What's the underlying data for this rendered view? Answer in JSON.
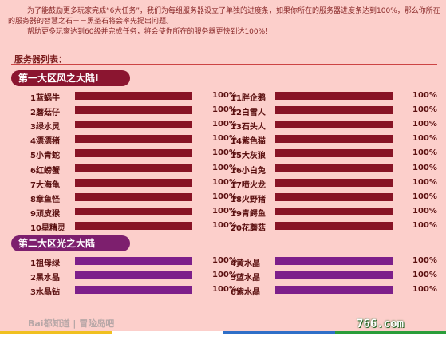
{
  "intro": {
    "p1": "为了能鼓励更多玩家完成“6大任务”，我们为每组服务器设立了单独的进度条，如果你所在的服务器进度条达到100%，那么你所在的服务器的智慧之石－－黑圣石将会率先提出问题。",
    "p2": "帮助更多玩家达到60级并完成任务，将会使你所在的服务器更快到达100%！"
  },
  "list_title": "服务器列表：",
  "region1": {
    "title": "第一大区风之大陆I",
    "left": [
      {
        "name": "1蓝蜗牛",
        "pct": "100%",
        "progress": 1.0
      },
      {
        "name": "2蘑菇仔",
        "pct": "100%",
        "progress": 1.0
      },
      {
        "name": "3绿水灵",
        "pct": "100%",
        "progress": 1.0
      },
      {
        "name": "4漂漂猪",
        "pct": "100%",
        "progress": 1.0
      },
      {
        "name": "5小青蛇",
        "pct": "100%",
        "progress": 1.0
      },
      {
        "name": "6红螃蟹",
        "pct": "100%",
        "progress": 1.0
      },
      {
        "name": "7大海龟",
        "pct": "100%",
        "progress": 1.0
      },
      {
        "name": "8章鱼怪",
        "pct": "100%",
        "progress": 1.0
      },
      {
        "name": "9顽皮猴",
        "pct": "100%",
        "progress": 1.0
      },
      {
        "name": "10星精灵",
        "pct": "100%",
        "progress": 1.0
      }
    ],
    "right": [
      {
        "name": "11胖企鹅",
        "pct": "100%",
        "progress": 1.0
      },
      {
        "name": "12白雪人",
        "pct": "100%",
        "progress": 1.0
      },
      {
        "name": "13石头人",
        "pct": "100%",
        "progress": 1.0
      },
      {
        "name": "14紫色猫",
        "pct": "100%",
        "progress": 1.0
      },
      {
        "name": "15大灰狼",
        "pct": "100%",
        "progress": 1.0
      },
      {
        "name": "16小白兔",
        "pct": "100%",
        "progress": 1.0
      },
      {
        "name": "17喷火龙",
        "pct": "100%",
        "progress": 1.0
      },
      {
        "name": "18火野猪",
        "pct": "100%",
        "progress": 1.0
      },
      {
        "name": "19青鳄鱼",
        "pct": "100%",
        "progress": 1.0
      },
      {
        "name": "20花蘑菇",
        "pct": "100%",
        "progress": 1.0
      }
    ]
  },
  "region2": {
    "title": "第二大区光之大陆",
    "left": [
      {
        "name": "1祖母绿",
        "pct": "100%",
        "progress": 1.0
      },
      {
        "name": "2黑水晶",
        "pct": "100%",
        "progress": 1.0
      },
      {
        "name": "3水晶钻",
        "pct": "100%",
        "progress": 1.0
      }
    ],
    "right": [
      {
        "name": "4黄水晶",
        "pct": "100%",
        "progress": 1.0
      },
      {
        "name": "5蓝水晶",
        "pct": "100%",
        "progress": 1.0
      },
      {
        "name": "6紫水晶",
        "pct": "100%",
        "progress": 1.0
      }
    ]
  },
  "watermark_left": "Bai都知道 | 冒险岛吧",
  "watermark_right": "766.com",
  "colors": {
    "background": "#fccfcb",
    "region1_bar": "#881325",
    "region2_bar": "#7d1f8a",
    "bar_track": "#a9cfa9"
  }
}
